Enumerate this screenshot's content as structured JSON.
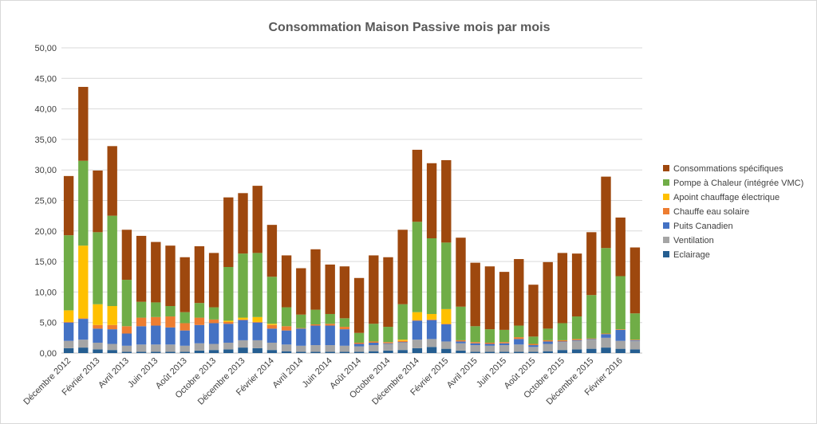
{
  "chart_data": {
    "type": "bar",
    "stacked": true,
    "title": "Consommation Maison Passive mois par mois",
    "xlabel": "",
    "ylabel": "",
    "ylim": [
      0,
      50
    ],
    "y_ticks": [
      "0,00",
      "5,00",
      "10,00",
      "15,00",
      "20,00",
      "25,00",
      "30,00",
      "35,00",
      "40,00",
      "45,00",
      "50,00"
    ],
    "x_tick_labels": [
      "Décembre 2012",
      "Février 2013",
      "Avril 2013",
      "Juin 2013",
      "Août 2013",
      "Octobre 2013",
      "Décembre 2013",
      "Février 2014",
      "Avril 2014",
      "Juin 2014",
      "Août 2014",
      "Octobre 2014",
      "Décembre 2014",
      "Février 2015",
      "Avril 2015",
      "Juin 2015",
      "Août 2015",
      "Octobre 2015",
      "Décembre 2015",
      "Février 2016"
    ],
    "grid": true,
    "legend_position": "right",
    "categories": [
      "Décembre 2012",
      "Janvier 2013",
      "Février 2013",
      "Mars 2013",
      "Avril 2013",
      "Mai 2013",
      "Juin 2013",
      "Juillet 2013",
      "Août 2013",
      "Septembre 2013",
      "Octobre 2013",
      "Novembre 2013",
      "Décembre 2013",
      "Janvier 2014",
      "Février 2014",
      "Mars 2014",
      "Avril 2014",
      "Mai 2014",
      "Juin 2014",
      "Juillet 2014",
      "Août 2014",
      "Septembre 2014",
      "Octobre 2014",
      "Novembre 2014",
      "Décembre 2014",
      "Janvier 2015",
      "Février 2015",
      "Mars 2015",
      "Avril 2015",
      "Mai 2015",
      "Juin 2015",
      "Juillet 2015",
      "Août 2015",
      "Septembre 2015",
      "Octobre 2015",
      "Novembre 2015",
      "Décembre 2015",
      "Janvier 2016",
      "Février 2016",
      "Mars 2016"
    ],
    "series": [
      {
        "name": "Eclairage",
        "color": "#255e91",
        "values": [
          0.8,
          0.9,
          0.6,
          0.5,
          0.2,
          0.2,
          0.2,
          0.2,
          0.2,
          0.4,
          0.5,
          0.6,
          0.9,
          0.8,
          0.5,
          0.3,
          0.2,
          0.2,
          0.2,
          0.2,
          0.2,
          0.3,
          0.4,
          0.5,
          0.8,
          1.0,
          0.7,
          0.4,
          0.2,
          0.2,
          0.2,
          0.2,
          0.2,
          0.3,
          0.5,
          0.6,
          0.7,
          0.9,
          0.7,
          0.6
        ]
      },
      {
        "name": "Ventilation",
        "color": "#a5a5a5",
        "values": [
          1.2,
          1.3,
          1.1,
          1.0,
          1.0,
          1.2,
          1.2,
          1.2,
          1.0,
          1.2,
          1.0,
          1.1,
          1.2,
          1.3,
          1.2,
          1.1,
          1.0,
          1.1,
          1.1,
          1.0,
          0.9,
          1.0,
          1.1,
          1.2,
          1.4,
          1.3,
          1.2,
          1.2,
          1.1,
          1.0,
          1.1,
          1.2,
          0.8,
          1.2,
          1.3,
          1.4,
          1.5,
          1.6,
          1.3,
          1.4
        ]
      },
      {
        "name": "Puits Canadien",
        "color": "#4472c4",
        "values": [
          3.0,
          3.4,
          2.3,
          2.4,
          2.0,
          3.0,
          3.1,
          2.8,
          2.5,
          3.0,
          3.4,
          3.1,
          3.3,
          2.9,
          2.3,
          2.3,
          2.8,
          3.2,
          3.2,
          2.7,
          0.4,
          0.4,
          0.1,
          0.1,
          3.1,
          3.1,
          2.8,
          0.3,
          0.3,
          0.3,
          0.3,
          0.9,
          0.3,
          0.4,
          0.1,
          0.1,
          0.1,
          0.6,
          1.8,
          0.1
        ]
      },
      {
        "name": "Chauffe eau solaire",
        "color": "#ed7d31",
        "values": [
          0.1,
          0.1,
          0.6,
          0.7,
          1.2,
          1.4,
          1.4,
          1.8,
          1.2,
          1.2,
          0.6,
          0.3,
          0.1,
          0.1,
          0.6,
          0.7,
          0.1,
          0.2,
          0.3,
          0.4,
          0.2,
          0.2,
          0.2,
          0.2,
          0.1,
          0.1,
          0.1,
          0.2,
          0.2,
          0.2,
          0.2,
          0.3,
          0.2,
          0.2,
          0.2,
          0.2,
          0.1,
          0.1,
          0.1,
          0.1
        ]
      },
      {
        "name": "Apoint chauffage électrique",
        "color": "#ffc000",
        "values": [
          1.9,
          11.9,
          3.4,
          3.1,
          0.0,
          0.0,
          0.0,
          0.0,
          0.0,
          0.0,
          0.0,
          0.2,
          0.3,
          0.8,
          0.2,
          0.0,
          0.0,
          0.0,
          0.0,
          0.0,
          0.0,
          0.0,
          0.0,
          0.2,
          1.3,
          0.9,
          2.4,
          0.0,
          0.0,
          0.0,
          0.0,
          0.0,
          0.0,
          0.0,
          0.0,
          0.0,
          0.0,
          0.0,
          0.0,
          0.0
        ]
      },
      {
        "name": "Pompe à Chaleur (intégrée VMC)",
        "color": "#70ad47",
        "values": [
          12.3,
          13.9,
          11.8,
          14.8,
          7.6,
          2.6,
          2.4,
          1.7,
          1.8,
          2.4,
          2.0,
          8.8,
          10.5,
          10.5,
          7.7,
          3.1,
          2.2,
          2.4,
          1.6,
          1.4,
          1.6,
          2.9,
          2.5,
          5.8,
          14.8,
          12.4,
          10.9,
          5.5,
          2.6,
          2.2,
          2.0,
          1.9,
          1.2,
          1.9,
          2.8,
          3.7,
          7.1,
          14.0,
          8.7,
          4.3
        ]
      },
      {
        "name": "Consommations spécifiques",
        "color": "#9e480e",
        "values": [
          9.7,
          12.1,
          10.1,
          11.4,
          8.2,
          10.8,
          9.9,
          9.9,
          9.0,
          9.3,
          8.9,
          11.4,
          9.9,
          11.0,
          8.5,
          8.5,
          7.6,
          9.9,
          8.1,
          8.5,
          9.0,
          11.2,
          11.4,
          12.2,
          11.8,
          12.3,
          13.5,
          11.3,
          10.4,
          10.3,
          9.5,
          10.9,
          8.5,
          10.9,
          11.5,
          10.3,
          10.3,
          11.7,
          9.6,
          10.8
        ]
      }
    ]
  }
}
